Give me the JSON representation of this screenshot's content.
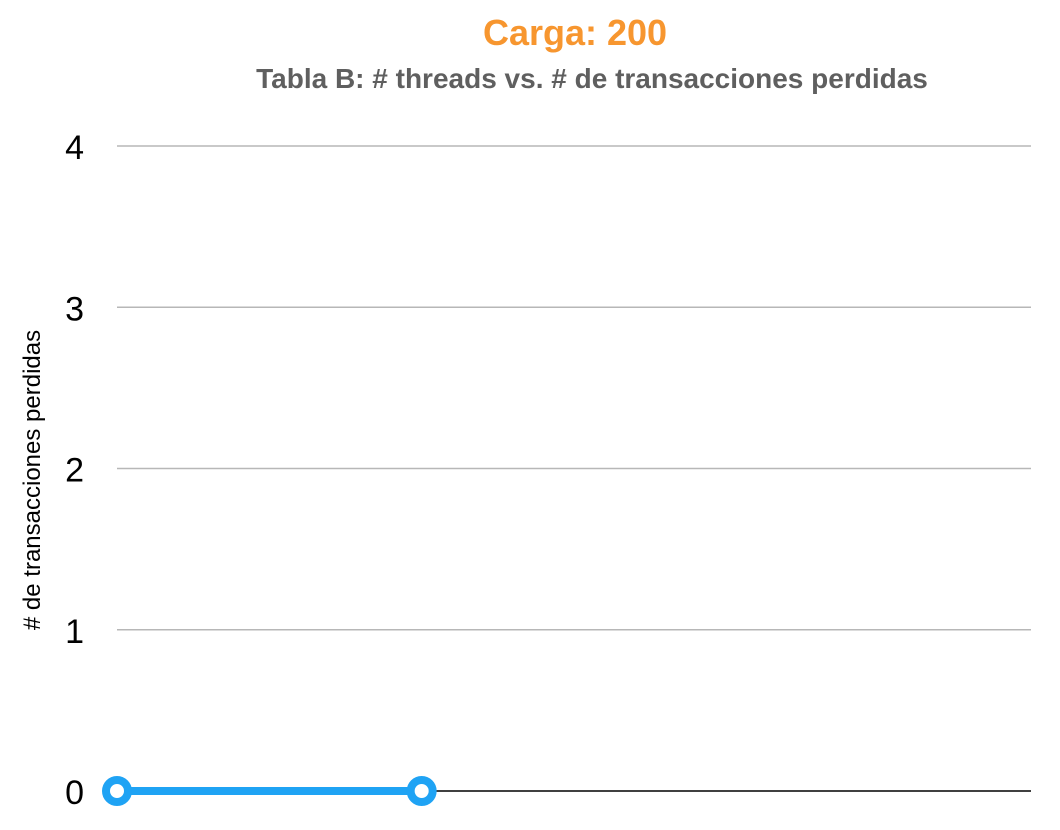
{
  "chart_data": {
    "type": "line",
    "title": "Carga: 200",
    "subtitle": "Tabla B: # threads vs. # de transacciones perdidas",
    "ylabel": "# de transacciones perdidas",
    "xlabel": "",
    "ylim": [
      0,
      4
    ],
    "yticks": [
      "0",
      "1",
      "2",
      "3",
      "4"
    ],
    "x": [
      1,
      2
    ],
    "xlim": [
      1,
      4
    ],
    "grid": true,
    "legend": "none",
    "series": [
      {
        "values": [
          0,
          0
        ]
      }
    ],
    "colors": {
      "title": "#f7962f",
      "series": "#1fa3f4",
      "grid": "#b7b7b7",
      "axis": "#000000"
    }
  }
}
